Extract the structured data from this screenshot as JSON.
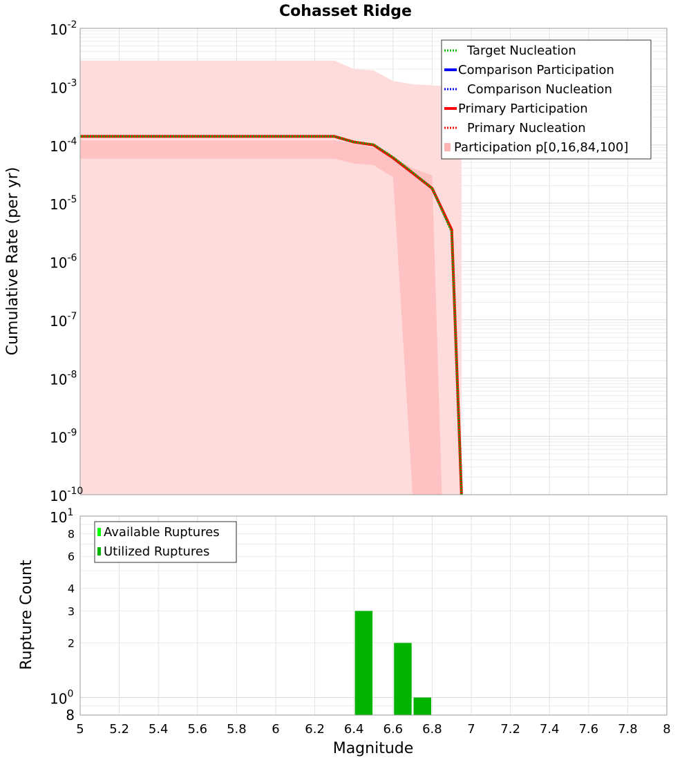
{
  "chart_data": [
    {
      "type": "line",
      "title": "Cohasset Ridge",
      "xlabel": "Magnitude",
      "ylabel": "Cumulative Rate (per yr)",
      "xlim": [
        5,
        8
      ],
      "ylim": [
        1e-10,
        0.01
      ],
      "yscale": "log",
      "grid": true,
      "legend_position": "top-right",
      "y_tick_labels": [
        {
          "base": "10",
          "exp": "-10"
        },
        {
          "base": "10",
          "exp": "-9"
        },
        {
          "base": "10",
          "exp": "-8"
        },
        {
          "base": "10",
          "exp": "-7"
        },
        {
          "base": "10",
          "exp": "-6"
        },
        {
          "base": "10",
          "exp": "-5"
        },
        {
          "base": "10",
          "exp": "-4"
        },
        {
          "base": "10",
          "exp": "-3"
        },
        {
          "base": "10",
          "exp": "-2"
        }
      ],
      "band": {
        "name": "Participation p[0,16,84,100]",
        "color": "#ffb4b4",
        "outer_x": [
          5.0,
          6.3,
          6.4,
          6.5,
          6.6,
          6.7,
          6.8,
          6.9,
          6.95
        ],
        "outer_upper": [
          0.0028,
          0.0028,
          0.002,
          0.0019,
          0.00125,
          0.0011,
          0.00105,
          0.001,
          0.001
        ],
        "outer_lower": [
          1e-10,
          1e-10,
          1e-10,
          1e-10,
          1e-10,
          1e-10,
          1e-10,
          1e-10,
          1e-10
        ],
        "inner_x": [
          5.0,
          6.3,
          6.4,
          6.5,
          6.6,
          6.7,
          6.8,
          6.85
        ],
        "inner_upper": [
          0.00012,
          0.00012,
          0.000105,
          9e-05,
          6e-05,
          4e-05,
          3e-05,
          1e-10
        ],
        "inner_lower": [
          5.8e-05,
          5.8e-05,
          4.8e-05,
          4.5e-05,
          2.8e-05,
          1e-10,
          1e-10,
          1e-10
        ]
      },
      "series": [
        {
          "name": "Target Nucleation",
          "color": "#00b400",
          "style": "dotted",
          "x": [
            5.0,
            6.3,
            6.4,
            6.5,
            6.6,
            6.7,
            6.8,
            6.9,
            6.95
          ],
          "values": [
            0.00014,
            0.00014,
            0.000112,
            0.000102,
            6.2e-05,
            3.4e-05,
            1.8e-05,
            3.2e-06,
            1e-10
          ]
        },
        {
          "name": "Comparison Participation",
          "color": "#0000ff",
          "style": "solid",
          "x": [],
          "values": []
        },
        {
          "name": "Comparison Nucleation",
          "color": "#0000ff",
          "style": "dotted",
          "x": [],
          "values": []
        },
        {
          "name": "Primary Participation",
          "color": "#ff0000",
          "style": "solid",
          "x": [
            5.0,
            6.3,
            6.4,
            6.5,
            6.6,
            6.7,
            6.8,
            6.9,
            6.95
          ],
          "values": [
            0.00014,
            0.00014,
            0.000112,
            0.0001,
            6e-05,
            3.3e-05,
            1.8e-05,
            3.5e-06,
            1e-10
          ]
        },
        {
          "name": "Primary Nucleation",
          "color": "#ff0000",
          "style": "dotted",
          "x": [
            5.0,
            6.3,
            6.4,
            6.5,
            6.6,
            6.7,
            6.8,
            6.9,
            6.95
          ],
          "values": [
            0.00014,
            0.00014,
            0.000112,
            0.0001,
            6e-05,
            3.3e-05,
            1.8e-05,
            3.5e-06,
            1e-10
          ]
        }
      ]
    },
    {
      "type": "bar",
      "xlabel": "Magnitude",
      "ylabel": "Rupture Count",
      "xlim": [
        5,
        8
      ],
      "ylim": [
        0.8,
        10
      ],
      "yscale": "log",
      "grid": true,
      "legend_position": "top-left",
      "x_ticks": [
        "5",
        "5.2",
        "5.4",
        "5.6",
        "5.8",
        "6",
        "6.2",
        "6.4",
        "6.6",
        "6.8",
        "7",
        "7.2",
        "7.4",
        "7.6",
        "7.8",
        "8"
      ],
      "y_minor_labels": [
        "2",
        "3",
        "4",
        "6",
        "8"
      ],
      "y_bottom_label": "8",
      "y_decade_labels": [
        {
          "base": "10",
          "exp": "0"
        },
        {
          "base": "10",
          "exp": "1"
        }
      ],
      "series": [
        {
          "name": "Available Ruptures",
          "color": "#00ff00",
          "x": [],
          "values": []
        },
        {
          "name": "Utilized Ruptures",
          "color": "#00b400",
          "x": [
            6.45,
            6.65,
            6.75
          ],
          "values": [
            3,
            2,
            1
          ]
        }
      ]
    }
  ]
}
